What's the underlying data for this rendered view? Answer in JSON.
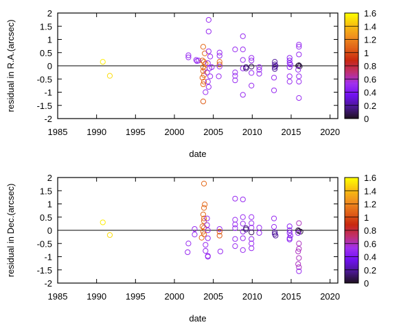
{
  "chart_data": [
    {
      "type": "scatter",
      "xlabel": "date",
      "ylabel": "residual in R.A.(arcsec)",
      "xlim": [
        1985,
        2021
      ],
      "ylim": [
        -2,
        2
      ],
      "xticks": [
        "1985",
        "1990",
        "1995",
        "2000",
        "2005",
        "2010",
        "2015",
        "2020"
      ],
      "yticks": [
        "-2",
        "-1.5",
        "-1",
        "-0.5",
        "0",
        "0.5",
        "1",
        "1.5",
        "2"
      ],
      "zero_line": true,
      "colorbar": {
        "range": [
          0,
          1.6
        ],
        "ticks": [
          "0",
          "0.2",
          "0.4",
          "0.6",
          "0.8",
          "1",
          "1.2",
          "1.4",
          "1.6"
        ]
      },
      "points": [
        [
          1990.8,
          0.15,
          1.55
        ],
        [
          1991.7,
          -0.38,
          1.5
        ],
        [
          2001.8,
          0.4,
          0.5
        ],
        [
          2001.8,
          0.32,
          0.5
        ],
        [
          2002.8,
          0.22,
          0.5
        ],
        [
          2002.9,
          0.18,
          0.5
        ],
        [
          2003.1,
          0.2,
          0.5
        ],
        [
          2003.7,
          0.72,
          1.1
        ],
        [
          2003.9,
          0.47,
          1.1
        ],
        [
          2003.6,
          0.2,
          1.1
        ],
        [
          2003.8,
          0.15,
          1.1
        ],
        [
          2003.7,
          -0.05,
          1.1
        ],
        [
          2003.9,
          -0.12,
          1.1
        ],
        [
          2003.7,
          -0.2,
          1.1
        ],
        [
          2003.8,
          -0.35,
          1.1
        ],
        [
          2003.6,
          -0.45,
          1.1
        ],
        [
          2003.8,
          -0.6,
          1.1
        ],
        [
          2003.7,
          -0.7,
          1.1
        ],
        [
          2003.7,
          -1.35,
          1.05
        ],
        [
          2004.0,
          0.08,
          1.1
        ],
        [
          2004.4,
          1.74,
          0.5
        ],
        [
          2004.4,
          1.3,
          0.5
        ],
        [
          2004.4,
          0.55,
          0.5
        ],
        [
          2004.6,
          0.35,
          0.5
        ],
        [
          2004.3,
          0.1,
          0.5
        ],
        [
          2004.5,
          -0.1,
          0.5
        ],
        [
          2004.2,
          -0.25,
          0.5
        ],
        [
          2004.6,
          -0.4,
          0.5
        ],
        [
          2004.3,
          -0.6,
          0.5
        ],
        [
          2004.4,
          -0.8,
          0.5
        ],
        [
          2004.0,
          -1.0,
          0.5
        ],
        [
          2004.8,
          -0.05,
          0.5
        ],
        [
          2005.8,
          0.5,
          0.5
        ],
        [
          2005.8,
          0.38,
          0.5
        ],
        [
          2005.8,
          0.15,
          1.1
        ],
        [
          2005.8,
          0.05,
          1.1
        ],
        [
          2005.8,
          -0.03,
          0.5
        ],
        [
          2005.7,
          -0.4,
          0.5
        ],
        [
          2007.8,
          0.62,
          0.5
        ],
        [
          2007.8,
          -0.25,
          0.5
        ],
        [
          2007.8,
          -0.38,
          0.5
        ],
        [
          2007.8,
          -0.55,
          0.5
        ],
        [
          2008.8,
          1.12,
          0.5
        ],
        [
          2008.8,
          0.62,
          0.5
        ],
        [
          2008.8,
          0.22,
          0.5
        ],
        [
          2008.8,
          -0.1,
          0.5
        ],
        [
          2008.8,
          -1.1,
          0.5
        ],
        [
          2009.2,
          -0.1,
          0.15
        ],
        [
          2009.2,
          -0.05,
          0.15
        ],
        [
          2009.9,
          0.3,
          0.5
        ],
        [
          2009.9,
          0.2,
          0.5
        ],
        [
          2009.9,
          -0.03,
          0.1
        ],
        [
          2009.9,
          -0.27,
          0.5
        ],
        [
          2009.9,
          -0.75,
          0.5
        ],
        [
          2010.9,
          -0.05,
          0.5
        ],
        [
          2010.9,
          -0.15,
          0.5
        ],
        [
          2010.9,
          -0.3,
          0.5
        ],
        [
          2012.9,
          0.15,
          0.2
        ],
        [
          2012.9,
          0.05,
          0.2
        ],
        [
          2012.9,
          -0.05,
          0.2
        ],
        [
          2012.9,
          -0.12,
          0.2
        ],
        [
          2013.0,
          0.0,
          0.2
        ],
        [
          2012.8,
          -0.45,
          0.5
        ],
        [
          2012.8,
          -0.93,
          0.5
        ],
        [
          2014.8,
          0.3,
          0.45
        ],
        [
          2014.8,
          0.2,
          0.45
        ],
        [
          2014.8,
          0.1,
          0.45
        ],
        [
          2014.9,
          0.05,
          0.45
        ],
        [
          2014.8,
          -0.05,
          0.45
        ],
        [
          2014.8,
          -0.4,
          0.5
        ],
        [
          2014.8,
          -0.6,
          0.5
        ],
        [
          2016.0,
          0.02,
          0.05
        ],
        [
          2016.1,
          -0.02,
          0.05
        ],
        [
          2015.9,
          0.0,
          0.05
        ],
        [
          2016.0,
          0.8,
          0.5
        ],
        [
          2016.0,
          0.72,
          0.5
        ],
        [
          2016.0,
          0.43,
          0.5
        ],
        [
          2015.9,
          -0.15,
          0.5
        ],
        [
          2016.0,
          -0.4,
          0.5
        ],
        [
          2016.0,
          -0.6,
          0.5
        ],
        [
          2016.0,
          -1.22,
          0.5
        ]
      ]
    },
    {
      "type": "scatter",
      "xlabel": "date",
      "ylabel": "residual in Dec.(arcsec)",
      "xlim": [
        1985,
        2021
      ],
      "ylim": [
        -2,
        2
      ],
      "xticks": [
        "1985",
        "1990",
        "1995",
        "2000",
        "2005",
        "2010",
        "2015",
        "2020"
      ],
      "yticks": [
        "-2",
        "-1.5",
        "-1",
        "-0.5",
        "0",
        "0.5",
        "1",
        "1.5",
        "2"
      ],
      "zero_line": true,
      "colorbar": {
        "range": [
          0,
          1.6
        ],
        "ticks": [
          "0",
          "0.2",
          "0.4",
          "0.6",
          "0.8",
          "1",
          "1.2",
          "1.4",
          "1.6"
        ]
      },
      "points": [
        [
          1990.8,
          0.3,
          1.55
        ],
        [
          1991.7,
          -0.18,
          1.5
        ],
        [
          2001.8,
          -0.5,
          0.5
        ],
        [
          2001.7,
          -0.83,
          0.5
        ],
        [
          2002.6,
          0.05,
          0.5
        ],
        [
          2002.6,
          -0.16,
          0.5
        ],
        [
          2003.8,
          1.77,
          1.1
        ],
        [
          2003.9,
          0.98,
          1.1
        ],
        [
          2003.8,
          0.85,
          1.1
        ],
        [
          2003.7,
          0.6,
          1.1
        ],
        [
          2003.8,
          0.45,
          1.1
        ],
        [
          2003.8,
          0.35,
          1.1
        ],
        [
          2003.6,
          0.15,
          1.1
        ],
        [
          2003.8,
          0.1,
          1.1
        ],
        [
          2003.7,
          -0.05,
          1.1
        ],
        [
          2003.8,
          -0.15,
          1.1
        ],
        [
          2003.5,
          -0.28,
          1.1
        ],
        [
          2004.2,
          0.45,
          0.5
        ],
        [
          2004.2,
          0.2,
          0.5
        ],
        [
          2004.3,
          0.0,
          0.5
        ],
        [
          2004.3,
          -0.3,
          0.5
        ],
        [
          2004.0,
          -0.55,
          0.5
        ],
        [
          2004.0,
          -0.78,
          0.5
        ],
        [
          2004.3,
          -1.0,
          0.5
        ],
        [
          2004.3,
          -0.97,
          0.5
        ],
        [
          2005.8,
          0.05,
          0.5
        ],
        [
          2005.8,
          -0.2,
          1.05
        ],
        [
          2005.8,
          -0.05,
          1.05
        ],
        [
          2005.9,
          -0.8,
          0.5
        ],
        [
          2007.8,
          1.2,
          0.5
        ],
        [
          2007.8,
          0.4,
          0.5
        ],
        [
          2007.8,
          0.22,
          0.5
        ],
        [
          2007.8,
          0.08,
          0.5
        ],
        [
          2007.8,
          -0.33,
          0.5
        ],
        [
          2007.8,
          -0.6,
          0.5
        ],
        [
          2008.8,
          1.17,
          0.5
        ],
        [
          2008.8,
          0.5,
          0.5
        ],
        [
          2008.8,
          0.25,
          0.5
        ],
        [
          2008.8,
          -0.05,
          0.5
        ],
        [
          2008.8,
          -0.3,
          0.5
        ],
        [
          2008.8,
          -0.75,
          0.5
        ],
        [
          2009.2,
          0.03,
          0.15
        ],
        [
          2009.2,
          0.08,
          0.15
        ],
        [
          2009.9,
          0.5,
          0.5
        ],
        [
          2009.9,
          0.27,
          0.5
        ],
        [
          2009.9,
          0.1,
          0.5
        ],
        [
          2009.9,
          -0.08,
          0.1
        ],
        [
          2009.9,
          -0.33,
          0.5
        ],
        [
          2009.9,
          -0.5,
          0.5
        ],
        [
          2009.9,
          -0.68,
          0.5
        ],
        [
          2010.9,
          0.1,
          0.5
        ],
        [
          2010.9,
          -0.1,
          0.5
        ],
        [
          2012.8,
          0.45,
          0.5
        ],
        [
          2012.8,
          0.13,
          0.5
        ],
        [
          2012.9,
          -0.08,
          0.2
        ],
        [
          2012.9,
          -0.14,
          0.2
        ],
        [
          2013.0,
          -0.2,
          0.2
        ],
        [
          2014.8,
          0.15,
          0.45
        ],
        [
          2014.8,
          0.0,
          0.45
        ],
        [
          2014.8,
          -0.1,
          0.45
        ],
        [
          2014.9,
          -0.2,
          0.45
        ],
        [
          2014.8,
          -0.3,
          0.45
        ],
        [
          2014.8,
          -0.35,
          0.45
        ],
        [
          2016.0,
          -0.03,
          0.05
        ],
        [
          2016.2,
          -0.05,
          0.05
        ],
        [
          2015.9,
          0.0,
          0.05
        ],
        [
          2016.0,
          0.27,
          0.6
        ],
        [
          2015.9,
          -0.1,
          0.5
        ],
        [
          2016.0,
          -0.5,
          0.6
        ],
        [
          2016.0,
          -0.7,
          0.6
        ],
        [
          2015.9,
          -0.8,
          0.6
        ],
        [
          2016.0,
          -1.05,
          0.6
        ],
        [
          2015.9,
          -1.28,
          0.6
        ],
        [
          2016.0,
          -1.4,
          0.6
        ],
        [
          2016.0,
          -1.55,
          0.5
        ]
      ]
    }
  ],
  "palette": [
    "#1c101c",
    "#4a1890",
    "#7010f0",
    "#a030f0",
    "#c03070",
    "#c82810",
    "#e06018",
    "#f09020",
    "#f8c010",
    "#ffff00"
  ]
}
